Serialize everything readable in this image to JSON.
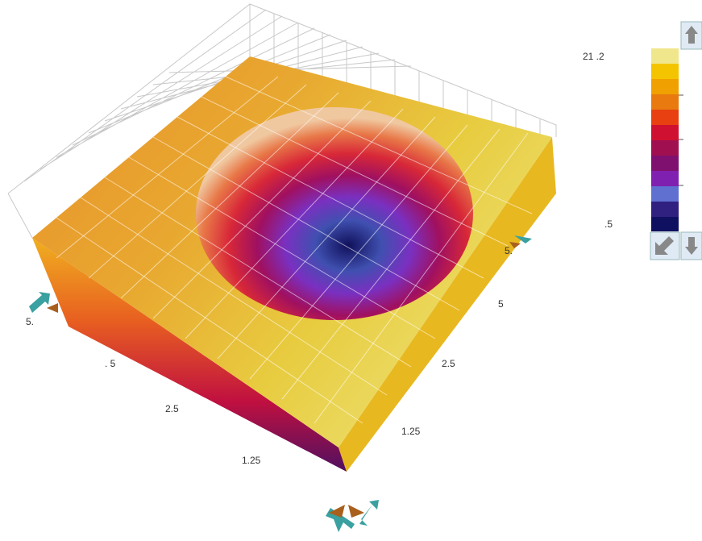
{
  "colorbar": {
    "max_label": "21 .2",
    "min_label": ".5"
  },
  "left_axis": {
    "labels": [
      "5.",
      ". 5",
      "2.5",
      "1.25"
    ]
  },
  "right_axis": {
    "labels": [
      "5.",
      "5",
      "2.5",
      "1.25"
    ]
  }
}
